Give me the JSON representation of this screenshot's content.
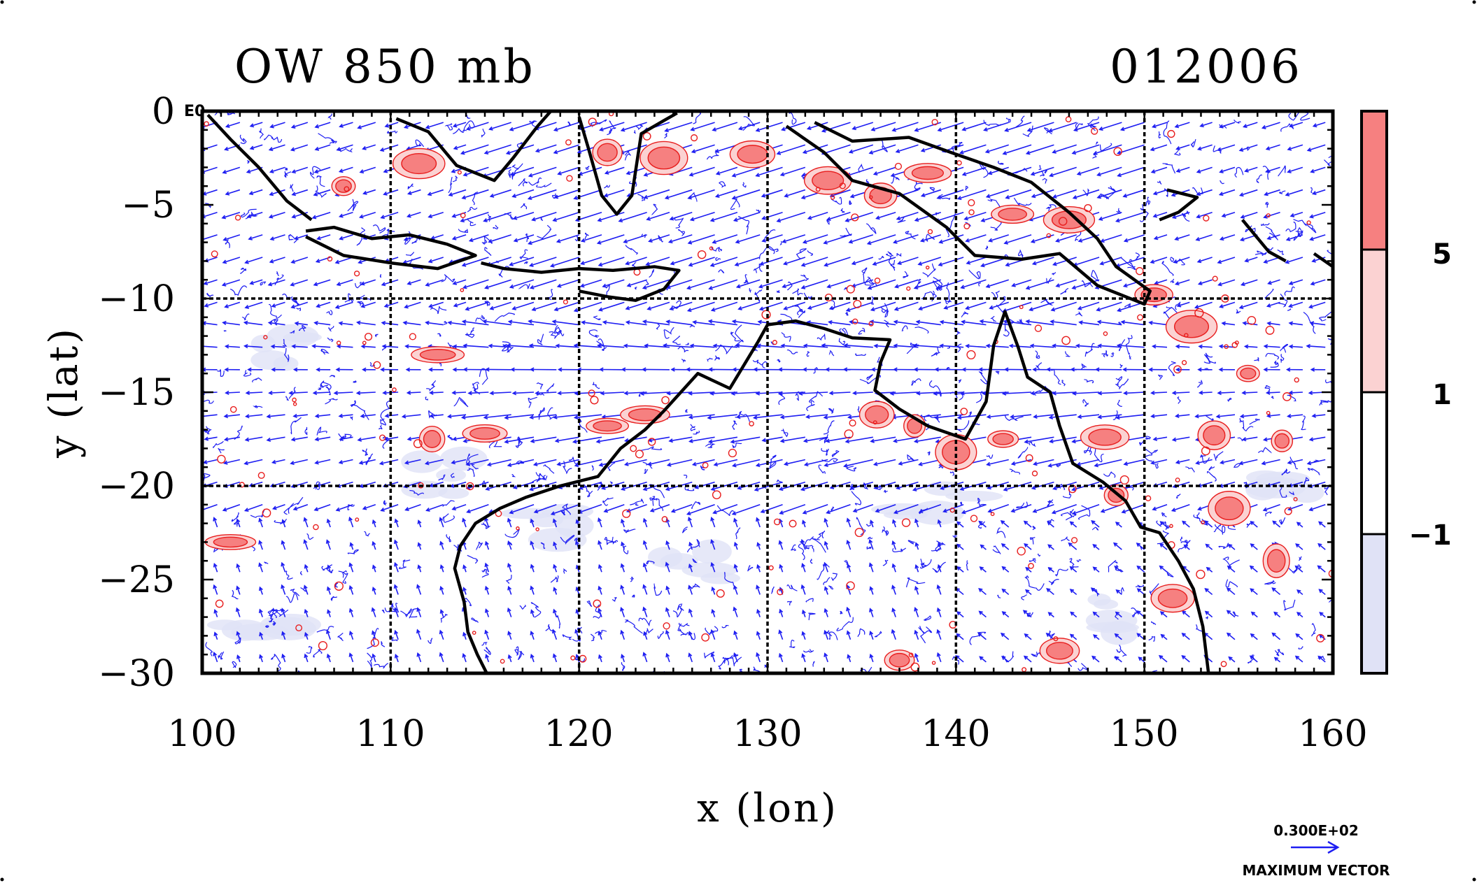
{
  "title": "OW 850 mb",
  "date_label": "012006",
  "corner_label": "E0",
  "axes": {
    "xlabel": "x (lon)",
    "ylabel": "y (lat)",
    "x_ticks": [
      "100",
      "110",
      "120",
      "130",
      "140",
      "150",
      "160"
    ],
    "y_ticks": [
      "0",
      "−5",
      "−10",
      "−15",
      "−20",
      "−25",
      "−30"
    ]
  },
  "colorbar": {
    "labels": [
      "5",
      "1",
      "−1"
    ],
    "colors": {
      "high": "#f68080",
      "mid_high": "#fbd2d2",
      "neutral": "#ffffff",
      "low": "#e0e2f6"
    }
  },
  "vector_key": {
    "magnitude": "0.300E+02",
    "label": "MAXIMUM VECTOR"
  },
  "colors": {
    "vector": "#1d1df2",
    "contour_positive": "#e81e1e",
    "contour_negative": "#1d1df2",
    "coastline": "#000000"
  },
  "chart_data": {
    "type": "map",
    "xlim": [
      100,
      160
    ],
    "ylim": [
      -30,
      0
    ],
    "grid_dashed_lon": [
      110,
      120,
      130,
      140,
      150
    ],
    "grid_dashed_lat": [
      -10,
      -20
    ],
    "coastlines": [
      [
        [
          100.3,
          -0.2
        ],
        [
          101.5,
          -1.5
        ],
        [
          103,
          -3
        ],
        [
          104.5,
          -4.8
        ],
        [
          105.8,
          -5.8
        ]
      ],
      [
        [
          105.5,
          -6.4
        ],
        [
          107,
          -6.2
        ],
        [
          109,
          -6.8
        ],
        [
          111,
          -6.6
        ],
        [
          113,
          -7.1
        ],
        [
          114.5,
          -7.7
        ],
        [
          112.5,
          -8.4
        ],
        [
          110,
          -8.1
        ],
        [
          107.5,
          -7.7
        ],
        [
          105.5,
          -6.7
        ]
      ],
      [
        [
          114.8,
          -8.1
        ],
        [
          116,
          -8.4
        ],
        [
          118,
          -8.6
        ],
        [
          120,
          -8.4
        ],
        [
          121.8,
          -8.5
        ],
        [
          124,
          -8.3
        ],
        [
          125.3,
          -8.5
        ],
        [
          124.5,
          -9.5
        ],
        [
          123,
          -10.1
        ],
        [
          121.5,
          -9.9
        ],
        [
          120,
          -9.6
        ]
      ],
      [
        [
          110.3,
          -0.4
        ],
        [
          112,
          -1.1
        ],
        [
          113.5,
          -2.9
        ],
        [
          115.5,
          -3.7
        ],
        [
          116.5,
          -2.5
        ],
        [
          117.8,
          -0.8
        ],
        [
          118.5,
          0
        ]
      ],
      [
        [
          120,
          -0.3
        ],
        [
          120.5,
          -2
        ],
        [
          121.2,
          -4.5
        ],
        [
          122,
          -5.5
        ],
        [
          122.8,
          -4.5
        ],
        [
          123.3,
          -1.2
        ],
        [
          124.5,
          -0.5
        ],
        [
          125.2,
          -0.1
        ]
      ],
      [
        [
          131,
          -0.8
        ],
        [
          133,
          -2.2
        ],
        [
          134.5,
          -3.7
        ],
        [
          137,
          -4.4
        ],
        [
          139.5,
          -6.2
        ],
        [
          141,
          -7.7
        ],
        [
          143.5,
          -7.9
        ],
        [
          145.5,
          -7.6
        ],
        [
          147.5,
          -9.3
        ],
        [
          150,
          -10.3
        ],
        [
          150.3,
          -9.6
        ],
        [
          148.5,
          -8.3
        ],
        [
          147.5,
          -6.8
        ],
        [
          146,
          -5.4
        ],
        [
          144,
          -3.8
        ],
        [
          142,
          -3
        ],
        [
          140,
          -2.3
        ],
        [
          137.5,
          -1.4
        ],
        [
          134.5,
          -1.6
        ],
        [
          132.5,
          -0.6
        ]
      ],
      [
        [
          151.2,
          -4.2
        ],
        [
          152.8,
          -4.6
        ],
        [
          151.8,
          -5.4
        ],
        [
          150.8,
          -5.8
        ]
      ],
      [
        [
          155.2,
          -5.8
        ],
        [
          156.6,
          -7.5
        ],
        [
          157.5,
          -8
        ]
      ],
      [
        [
          159,
          -7.6
        ],
        [
          160,
          -8.3
        ]
      ],
      [
        [
          130,
          -11.4
        ],
        [
          131.5,
          -11.2
        ],
        [
          133,
          -11.6
        ],
        [
          134.5,
          -12.1
        ],
        [
          136.5,
          -12.2
        ],
        [
          136,
          -13.4
        ],
        [
          135.7,
          -14.9
        ],
        [
          137,
          -15.9
        ],
        [
          138.5,
          -16.8
        ],
        [
          140.5,
          -17.5
        ],
        [
          141.6,
          -15.5
        ],
        [
          142,
          -12.5
        ],
        [
          142.6,
          -10.7
        ],
        [
          143.3,
          -12.6
        ],
        [
          143.8,
          -14.2
        ],
        [
          145,
          -15
        ],
        [
          145.5,
          -16.8
        ],
        [
          146.2,
          -18.8
        ],
        [
          147.8,
          -19.8
        ],
        [
          149,
          -20.8
        ],
        [
          149.8,
          -22.2
        ],
        [
          150.8,
          -22.5
        ],
        [
          151.8,
          -24
        ],
        [
          152.6,
          -25.5
        ],
        [
          153.1,
          -27.5
        ],
        [
          153.4,
          -30
        ]
      ],
      [
        [
          130,
          -11.4
        ],
        [
          129.5,
          -12.3
        ],
        [
          128,
          -14.8
        ],
        [
          126.3,
          -14
        ],
        [
          124.5,
          -16
        ],
        [
          123.5,
          -17
        ],
        [
          122.2,
          -18
        ],
        [
          121,
          -19.5
        ],
        [
          119,
          -20
        ],
        [
          117.2,
          -20.6
        ],
        [
          115.8,
          -21.2
        ],
        [
          114.5,
          -22
        ],
        [
          113.7,
          -23.2
        ],
        [
          113.4,
          -24.4
        ],
        [
          113.9,
          -26.2
        ],
        [
          114.1,
          -27.8
        ],
        [
          114.6,
          -29
        ],
        [
          115.1,
          -30
        ]
      ]
    ],
    "positive_ow_cores": [
      [
        107.5,
        -4
      ],
      [
        111.5,
        -2.8
      ],
      [
        121.5,
        -2.2
      ],
      [
        124.5,
        -2.5
      ],
      [
        129.2,
        -2.3
      ],
      [
        133.2,
        -3.7
      ],
      [
        136,
        -4.5
      ],
      [
        138.5,
        -3.3
      ],
      [
        143,
        -5.5
      ],
      [
        146,
        -5.8
      ],
      [
        112.5,
        -13
      ],
      [
        112.2,
        -17.5
      ],
      [
        115,
        -17.2
      ],
      [
        121.5,
        -16.8
      ],
      [
        123.5,
        -16.2
      ],
      [
        135.8,
        -16.2
      ],
      [
        137.8,
        -16.8
      ],
      [
        140,
        -18.2
      ],
      [
        142.5,
        -17.5
      ],
      [
        147.9,
        -17.4
      ],
      [
        153.7,
        -17.3
      ],
      [
        157.3,
        -17.6
      ],
      [
        150.5,
        -9.8
      ],
      [
        152.5,
        -11.5
      ],
      [
        155.5,
        -14
      ],
      [
        148.5,
        -20.5
      ],
      [
        154.5,
        -21.2
      ],
      [
        157,
        -24
      ],
      [
        151.5,
        -26
      ],
      [
        145.5,
        -28.8
      ],
      [
        137,
        -29.3
      ],
      [
        101.5,
        -23
      ]
    ],
    "negative_ow_regions": [
      [
        105,
        -13
      ],
      [
        112,
        -19.5
      ],
      [
        119,
        -22
      ],
      [
        126,
        -24
      ],
      [
        139,
        -21
      ],
      [
        148,
        -27
      ],
      [
        158,
        -20
      ],
      [
        103,
        -27
      ]
    ]
  }
}
